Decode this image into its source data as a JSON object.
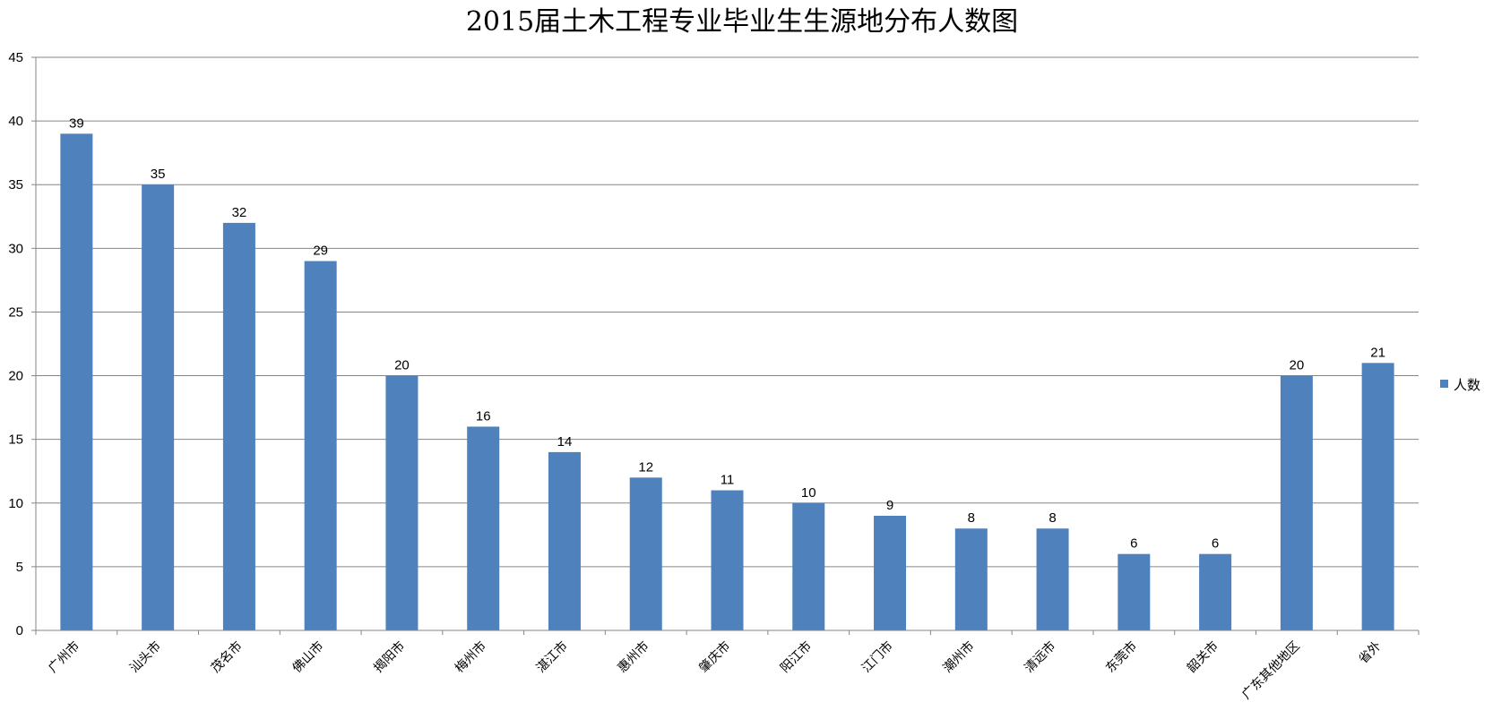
{
  "chart_data": {
    "type": "bar",
    "title": "2015届土木工程专业毕业生生源地分布人数图",
    "categories": [
      "广州市",
      "汕头市",
      "茂名市",
      "佛山市",
      "揭阳市",
      "梅州市",
      "湛江市",
      "惠州市",
      "肇庆市",
      "阳江市",
      "江门市",
      "潮州市",
      "清远市",
      "东莞市",
      "韶关市",
      "广东其他地区",
      "省外"
    ],
    "series": [
      {
        "name": "人数",
        "values": [
          39,
          35,
          32,
          29,
          20,
          16,
          14,
          12,
          11,
          10,
          9,
          8,
          8,
          6,
          6,
          20,
          21
        ],
        "color": "#4f81bd"
      }
    ],
    "ylim": [
      0,
      45
    ],
    "y_ticks": [
      0,
      5,
      10,
      15,
      20,
      25,
      30,
      35,
      40,
      45
    ],
    "xlabel": "",
    "ylabel": "",
    "grid": true,
    "legend": "right",
    "data_labels": true,
    "gridline_color": "#868686"
  }
}
